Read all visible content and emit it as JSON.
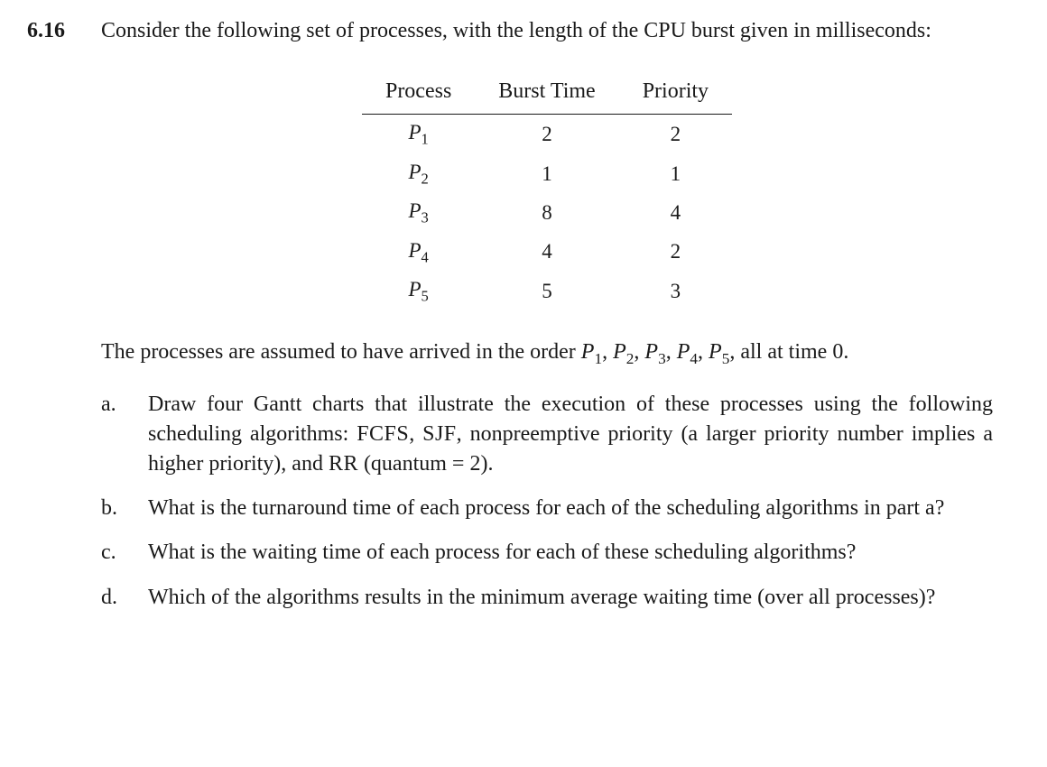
{
  "problem_number": "6.16",
  "intro": "Consider the following set of processes, with the length of the CPU burst given in milliseconds:",
  "table": {
    "columns": [
      "Process",
      "Burst Time",
      "Priority"
    ],
    "rows": [
      {
        "proc_base": "P",
        "proc_sub": "1",
        "burst": "2",
        "priority": "2"
      },
      {
        "proc_base": "P",
        "proc_sub": "2",
        "burst": "1",
        "priority": "1"
      },
      {
        "proc_base": "P",
        "proc_sub": "3",
        "burst": "8",
        "priority": "4"
      },
      {
        "proc_base": "P",
        "proc_sub": "4",
        "burst": "4",
        "priority": "2"
      },
      {
        "proc_base": "P",
        "proc_sub": "5",
        "burst": "5",
        "priority": "3"
      }
    ]
  },
  "mid_pre": "The processes are assumed to have arrived in the order ",
  "mid_post": ", all at time 0.",
  "proc_list": [
    {
      "base": "P",
      "sub": "1"
    },
    {
      "base": "P",
      "sub": "2"
    },
    {
      "base": "P",
      "sub": "3"
    },
    {
      "base": "P",
      "sub": "4"
    },
    {
      "base": "P",
      "sub": "5"
    }
  ],
  "parts": {
    "a": {
      "label": "a.",
      "pre": "Draw four Gantt charts that illustrate the execution of these processes using the following scheduling algorithms: ",
      "sc1": "FCFS",
      "sep1": ", ",
      "sc2": "SJF",
      "sep2": ", nonpreemptive priority (a larger priority number implies a higher priority), and ",
      "sc3": "RR",
      "post": " (quantum = 2)."
    },
    "b": {
      "label": "b.",
      "text": "What is the turnaround time of each process for each of the scheduling algorithms in part a?"
    },
    "c": {
      "label": "c.",
      "text": "What is the waiting time of each process for each of these scheduling algorithms?"
    },
    "d": {
      "label": "d.",
      "text": "Which of the algorithms results in the minimum average waiting time (over all processes)?"
    }
  }
}
